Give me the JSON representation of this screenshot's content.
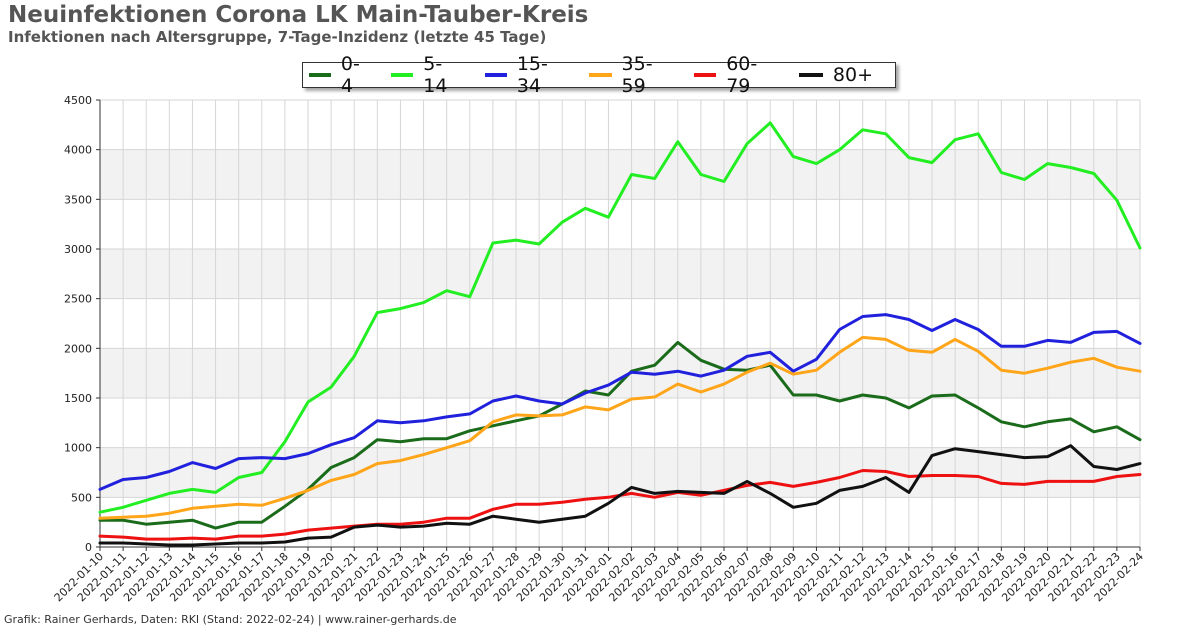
{
  "title": "Neuinfektionen Corona LK Main-Tauber-Kreis",
  "subtitle": "Infektionen nach Altersgruppe, 7-Tage-Inzidenz (letzte 45 Tage)",
  "footer": "Grafik: Rainer Gerhards, Daten: RKI (Stand: 2022-02-24) | www.rainer-gerhards.de",
  "chart_data": {
    "type": "line",
    "title": "Neuinfektionen Corona LK Main-Tauber-Kreis",
    "subtitle": "Infektionen nach Altersgruppe, 7-Tage-Inzidenz (letzte 45 Tage)",
    "xlabel": "",
    "ylabel": "",
    "ylim": [
      0,
      4500
    ],
    "yticks": [
      0,
      500,
      1000,
      1500,
      2000,
      2500,
      3000,
      3500,
      4000,
      4500
    ],
    "grid": true,
    "legend_position": "top-center",
    "x": [
      "2022-01-10",
      "2022-01-11",
      "2022-01-12",
      "2022-01-13",
      "2022-01-14",
      "2022-01-15",
      "2022-01-16",
      "2022-01-17",
      "2022-01-18",
      "2022-01-19",
      "2022-01-20",
      "2022-01-21",
      "2022-01-22",
      "2022-01-23",
      "2022-01-24",
      "2022-01-25",
      "2022-01-26",
      "2022-01-27",
      "2022-01-28",
      "2022-01-29",
      "2022-01-30",
      "2022-01-31",
      "2022-02-01",
      "2022-02-02",
      "2022-02-03",
      "2022-02-04",
      "2022-02-05",
      "2022-02-06",
      "2022-02-07",
      "2022-02-08",
      "2022-02-09",
      "2022-02-10",
      "2022-02-11",
      "2022-02-12",
      "2022-02-13",
      "2022-02-14",
      "2022-02-15",
      "2022-02-16",
      "2022-02-17",
      "2022-02-18",
      "2022-02-19",
      "2022-02-20",
      "2022-02-21",
      "2022-02-22",
      "2022-02-23",
      "2022-02-24"
    ],
    "series": [
      {
        "name": "0-4",
        "color": "#1a6b1a",
        "values": [
          270,
          270,
          230,
          250,
          270,
          190,
          250,
          250,
          410,
          580,
          800,
          900,
          1080,
          1060,
          1090,
          1090,
          1170,
          1220,
          1270,
          1320,
          1440,
          1570,
          1530,
          1770,
          1830,
          2060,
          1880,
          1790,
          1780,
          1830,
          1530,
          1530,
          1470,
          1530,
          1500,
          1400,
          1520,
          1530,
          1400,
          1260,
          1210,
          1260,
          1290,
          1160,
          1210,
          1080
        ]
      },
      {
        "name": "5-14",
        "color": "#22ee22",
        "values": [
          350,
          400,
          470,
          540,
          580,
          550,
          700,
          750,
          1060,
          1460,
          1610,
          1920,
          2360,
          2400,
          2460,
          2580,
          2520,
          3060,
          3090,
          3050,
          3270,
          3410,
          3320,
          3750,
          3710,
          4080,
          3750,
          3680,
          4060,
          4270,
          3930,
          3860,
          4000,
          4200,
          4160,
          3920,
          3870,
          4100,
          4160,
          3770,
          3700,
          3860,
          3820,
          3760,
          3490,
          3010
        ]
      },
      {
        "name": "15-34",
        "color": "#2020dd",
        "values": [
          580,
          680,
          700,
          760,
          850,
          790,
          890,
          900,
          890,
          940,
          1030,
          1100,
          1270,
          1250,
          1270,
          1310,
          1340,
          1470,
          1520,
          1470,
          1440,
          1550,
          1630,
          1760,
          1740,
          1770,
          1720,
          1780,
          1920,
          1960,
          1770,
          1890,
          2190,
          2320,
          2340,
          2290,
          2180,
          2290,
          2190,
          2020,
          2020,
          2080,
          2060,
          2160,
          2170,
          2050
        ]
      },
      {
        "name": "35-59",
        "color": "#ffa51a",
        "values": [
          290,
          300,
          310,
          340,
          390,
          410,
          430,
          420,
          490,
          570,
          670,
          730,
          840,
          870,
          930,
          1000,
          1070,
          1260,
          1330,
          1320,
          1330,
          1410,
          1380,
          1490,
          1510,
          1640,
          1560,
          1640,
          1760,
          1850,
          1740,
          1780,
          1960,
          2110,
          2090,
          1980,
          1960,
          2090,
          1970,
          1780,
          1750,
          1800,
          1860,
          1900,
          1810,
          1770
        ]
      },
      {
        "name": "60-79",
        "color": "#ee1111",
        "values": [
          110,
          100,
          80,
          80,
          90,
          80,
          110,
          110,
          130,
          170,
          190,
          210,
          230,
          230,
          250,
          290,
          290,
          380,
          430,
          430,
          450,
          480,
          500,
          540,
          500,
          550,
          520,
          570,
          620,
          650,
          610,
          650,
          700,
          770,
          760,
          710,
          720,
          720,
          710,
          640,
          630,
          660,
          660,
          660,
          710,
          730
        ]
      },
      {
        "name": "80+",
        "color": "#111111",
        "values": [
          40,
          40,
          30,
          20,
          20,
          30,
          40,
          40,
          50,
          90,
          100,
          200,
          220,
          200,
          210,
          240,
          230,
          310,
          280,
          250,
          280,
          310,
          440,
          600,
          540,
          560,
          550,
          540,
          660,
          540,
          400,
          440,
          570,
          610,
          700,
          550,
          920,
          990,
          960,
          930,
          900,
          910,
          1020,
          810,
          780,
          840
        ]
      }
    ]
  }
}
